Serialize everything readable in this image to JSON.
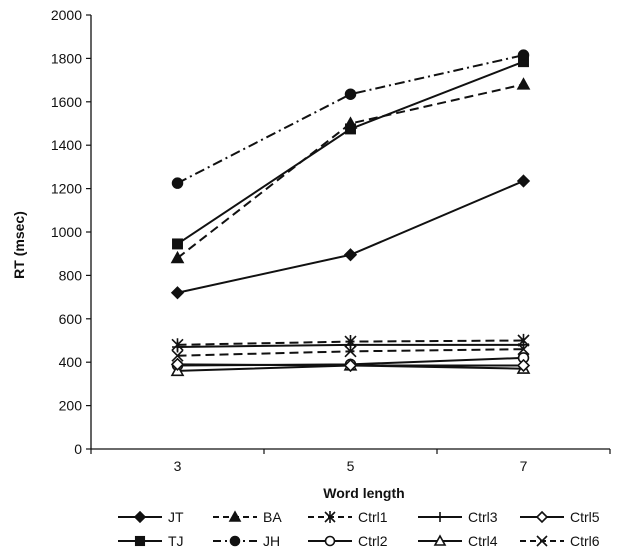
{
  "chart_data": {
    "type": "line",
    "title": "",
    "xlabel": "Word length",
    "ylabel": "RT (msec)",
    "x": [
      3,
      5,
      7
    ],
    "xlim": [
      2,
      8
    ],
    "ylim": [
      0,
      2000
    ],
    "yticks": [
      0,
      200,
      400,
      600,
      800,
      1000,
      1200,
      1400,
      1600,
      1800,
      2000
    ],
    "xticks": [
      3,
      5,
      7
    ],
    "grid": false,
    "legend_position": "bottom",
    "series": [
      {
        "name": "JT",
        "values": [
          720,
          895,
          1235
        ],
        "marker": "diamond-filled",
        "dash": "solid",
        "color": "#111111"
      },
      {
        "name": "TJ",
        "values": [
          945,
          1475,
          1785
        ],
        "marker": "square-filled",
        "dash": "solid",
        "color": "#111111"
      },
      {
        "name": "BA",
        "values": [
          880,
          1500,
          1680
        ],
        "marker": "triangle-filled",
        "dash": "dashed",
        "color": "#111111"
      },
      {
        "name": "JH",
        "values": [
          1225,
          1635,
          1815
        ],
        "marker": "circle-filled",
        "dash": "dashdot",
        "color": "#111111"
      },
      {
        "name": "Ctrl1",
        "values": [
          480,
          495,
          500
        ],
        "marker": "asterisk",
        "dash": "dashed",
        "color": "#111111"
      },
      {
        "name": "Ctrl2",
        "values": [
          385,
          390,
          420
        ],
        "marker": "circle-open",
        "dash": "solid",
        "color": "#111111"
      },
      {
        "name": "Ctrl3",
        "values": [
          470,
          480,
          480
        ],
        "marker": "plus",
        "dash": "solid",
        "color": "#111111"
      },
      {
        "name": "Ctrl4",
        "values": [
          360,
          385,
          370
        ],
        "marker": "triangle-open",
        "dash": "solid",
        "color": "#111111"
      },
      {
        "name": "Ctrl5",
        "values": [
          390,
          385,
          385
        ],
        "marker": "diamond-open",
        "dash": "solid",
        "color": "#111111"
      },
      {
        "name": "Ctrl6",
        "values": [
          430,
          450,
          460
        ],
        "marker": "x",
        "dash": "dashed",
        "color": "#111111"
      }
    ]
  }
}
